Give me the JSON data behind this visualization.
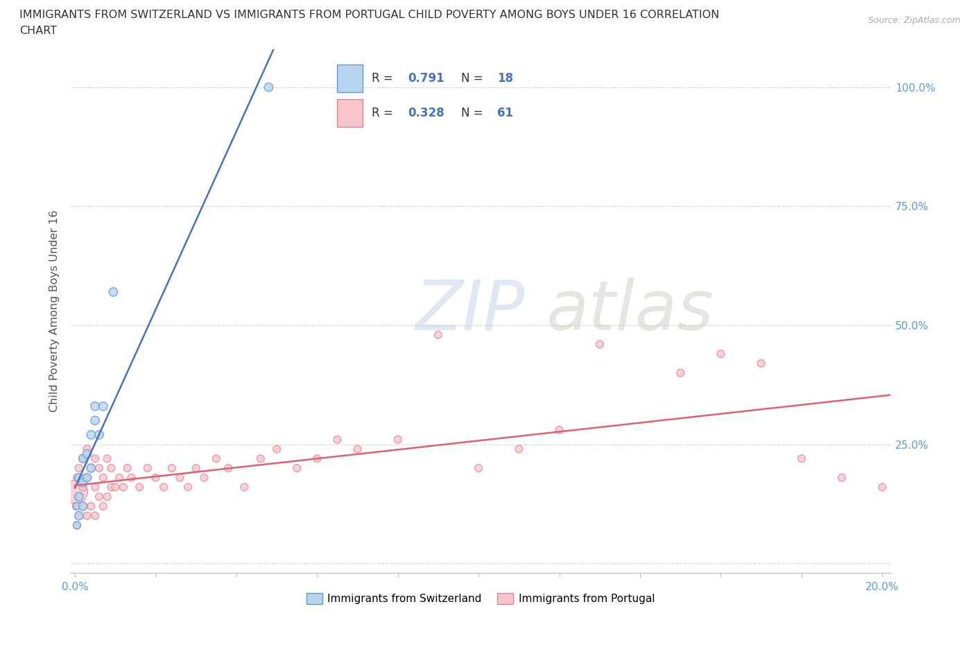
{
  "title_line1": "IMMIGRANTS FROM SWITZERLAND VS IMMIGRANTS FROM PORTUGAL CHILD POVERTY AMONG BOYS UNDER 16 CORRELATION",
  "title_line2": "CHART",
  "source": "Source: ZipAtlas.com",
  "ylabel": "Child Poverty Among Boys Under 16",
  "xlim": [
    -0.001,
    0.202
  ],
  "ylim": [
    -0.02,
    1.08
  ],
  "watermark_zip": "ZIP",
  "watermark_atlas": "atlas",
  "r_switzerland": 0.791,
  "n_switzerland": 18,
  "r_portugal": 0.328,
  "n_portugal": 61,
  "switzerland_face_color": "#b8d4ee",
  "switzerland_edge_color": "#5b9bd5",
  "portugal_face_color": "#f7c5cb",
  "portugal_edge_color": "#e87d8e",
  "switzerland_line_color": "#4472c4",
  "portugal_line_color": "#e06070",
  "background_color": "#ffffff",
  "grid_color": "#cccccc",
  "tick_label_color": "#5b9bd5",
  "ylabel_color": "#555555",
  "title_color": "#333333",
  "source_color": "#aaaaaa",
  "sw_x": [
    0.0005,
    0.0005,
    0.001,
    0.001,
    0.001,
    0.002,
    0.002,
    0.002,
    0.003,
    0.003,
    0.004,
    0.004,
    0.005,
    0.005,
    0.006,
    0.007,
    0.0095,
    0.048
  ],
  "sw_y": [
    0.08,
    0.12,
    0.1,
    0.14,
    0.18,
    0.12,
    0.17,
    0.22,
    0.18,
    0.23,
    0.2,
    0.27,
    0.3,
    0.33,
    0.27,
    0.33,
    0.57,
    1.0
  ],
  "sw_size": [
    60,
    60,
    80,
    80,
    80,
    80,
    80,
    80,
    80,
    80,
    80,
    80,
    80,
    80,
    80,
    80,
    80,
    80
  ],
  "pt_x": [
    0.0002,
    0.0003,
    0.0005,
    0.0005,
    0.001,
    0.001,
    0.001,
    0.002,
    0.002,
    0.002,
    0.003,
    0.003,
    0.003,
    0.004,
    0.004,
    0.005,
    0.005,
    0.005,
    0.006,
    0.006,
    0.007,
    0.007,
    0.008,
    0.008,
    0.009,
    0.009,
    0.01,
    0.011,
    0.012,
    0.013,
    0.014,
    0.016,
    0.018,
    0.02,
    0.022,
    0.024,
    0.026,
    0.028,
    0.03,
    0.032,
    0.035,
    0.038,
    0.042,
    0.046,
    0.05,
    0.055,
    0.06,
    0.065,
    0.07,
    0.08,
    0.09,
    0.1,
    0.11,
    0.12,
    0.13,
    0.15,
    0.16,
    0.17,
    0.18,
    0.19,
    0.2
  ],
  "pt_y": [
    0.15,
    0.12,
    0.08,
    0.18,
    0.1,
    0.14,
    0.2,
    0.12,
    0.16,
    0.22,
    0.1,
    0.18,
    0.24,
    0.12,
    0.2,
    0.1,
    0.16,
    0.22,
    0.14,
    0.2,
    0.12,
    0.18,
    0.14,
    0.22,
    0.16,
    0.2,
    0.16,
    0.18,
    0.16,
    0.2,
    0.18,
    0.16,
    0.2,
    0.18,
    0.16,
    0.2,
    0.18,
    0.16,
    0.2,
    0.18,
    0.22,
    0.2,
    0.16,
    0.22,
    0.24,
    0.2,
    0.22,
    0.26,
    0.24,
    0.26,
    0.48,
    0.2,
    0.24,
    0.28,
    0.46,
    0.4,
    0.44,
    0.42,
    0.22,
    0.18,
    0.16
  ],
  "pt_size": [
    600,
    60,
    60,
    60,
    60,
    60,
    60,
    60,
    60,
    60,
    60,
    60,
    60,
    60,
    60,
    60,
    60,
    60,
    60,
    60,
    60,
    60,
    60,
    60,
    60,
    60,
    60,
    60,
    60,
    60,
    60,
    60,
    60,
    60,
    60,
    60,
    60,
    60,
    60,
    60,
    60,
    60,
    60,
    60,
    60,
    60,
    60,
    60,
    60,
    60,
    60,
    60,
    60,
    60,
    60,
    60,
    60,
    60,
    60,
    60,
    60
  ]
}
